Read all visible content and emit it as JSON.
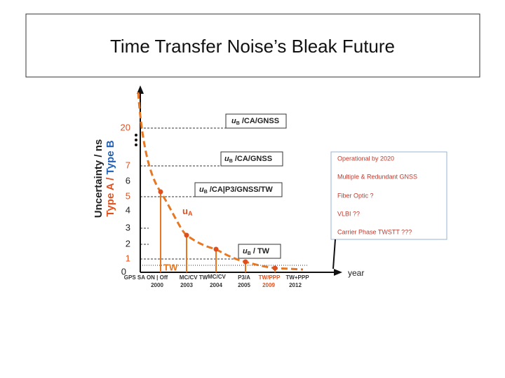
{
  "title": "Time Transfer Noise’s Bleak Future",
  "y_axis": {
    "label_black": "Uncertainty / ns",
    "label_red": "Type A / ",
    "label_blue": "Type B",
    "ticks": [
      "0",
      "1",
      "2",
      "3",
      "4",
      "5",
      "6",
      "7",
      "20"
    ]
  },
  "x_axis": {
    "label": "year",
    "events": [
      {
        "name": "GPS SA ON | Off",
        "year": "2000"
      },
      {
        "name": "MC/CV  TW",
        "year": "2003"
      },
      {
        "name": "MC/CV",
        "year": "2004"
      },
      {
        "name": "P3/A",
        "year": "2005"
      },
      {
        "name": "TW/PPP",
        "year": "2009"
      },
      {
        "name": "TW+PPP",
        "year": "2012"
      }
    ]
  },
  "boxes": [
    {
      "symbol": "u",
      "sub": "B",
      "text": " /CA/GNSS"
    },
    {
      "symbol": "u",
      "sub": "B",
      "text": " /CA/GNSS"
    },
    {
      "symbol": "u",
      "sub": "B",
      "text": " /CA|P3/GNSS/TW"
    },
    {
      "symbol": "u",
      "sub": "B",
      "text": " / TW"
    }
  ],
  "ua_label": {
    "symbol": "u",
    "sub": "A"
  },
  "tw_label": "TW",
  "outlook": [
    "Operational by 2020",
    "Multiple & Redundant GNSS",
    "Fiber Optic ?",
    "VLBI ??",
    "Carrier Phase TWSTT ???"
  ]
}
